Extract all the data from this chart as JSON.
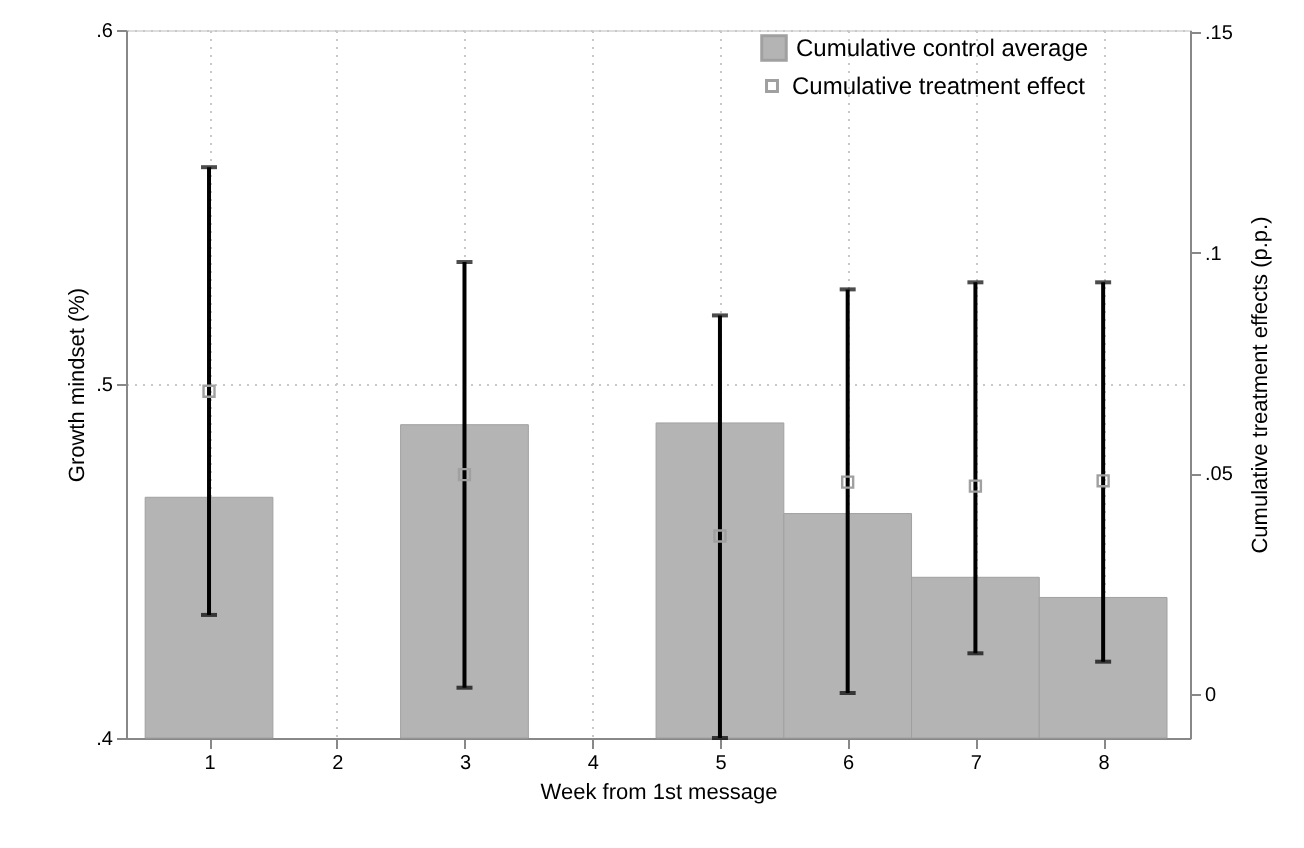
{
  "chart_data": {
    "type": "bar",
    "xlabel": "Week from 1st message",
    "ylabel": "Growth mindset (%)",
    "y2label": "Cumulative treatment effects (p.p.)",
    "x": [
      1,
      3,
      5,
      6,
      7,
      8
    ],
    "series": [
      {
        "name": "Cumulative control average",
        "color": "#b4b4b4",
        "values": [
          0.468,
          0.4885,
          0.489,
          0.4634,
          0.4454,
          0.4397
        ]
      },
      {
        "name": "Cumulative treatment effect",
        "type": "scatter",
        "axis": "y2",
        "marker": "square",
        "color": "#a0a0a0",
        "values": [
          0.0686,
          0.0497,
          0.0358,
          0.048,
          0.0471,
          0.0483
        ],
        "errors": [
          [
            0.0179,
            0.1194
          ],
          [
            0.0014,
            0.0979
          ],
          [
            -0.01,
            0.0858
          ],
          [
            0.0002,
            0.0917
          ],
          [
            0.0092,
            0.0933
          ],
          [
            0.0073,
            0.0933
          ]
        ]
      }
    ],
    "xlim": [
      0.35,
      8.68
    ],
    "xticks": [
      1,
      2,
      3,
      4,
      5,
      6,
      7,
      8
    ],
    "ylim": [
      0.4,
      0.6
    ],
    "yticks": [
      {
        "value": 0.4,
        "label": ".4"
      },
      {
        "value": 0.5,
        "label": ".5"
      },
      {
        "value": 0.6,
        "label": ".6"
      }
    ],
    "y2lim": [
      -0.01,
      0.1505
    ],
    "y2ticks": [
      0,
      {
        "value": 0.05,
        "label": ".05"
      },
      {
        "value": 0.1,
        "label": ".1"
      },
      {
        "value": 0.15,
        "label": ".15"
      }
    ],
    "grid": true,
    "legend": "top right"
  }
}
